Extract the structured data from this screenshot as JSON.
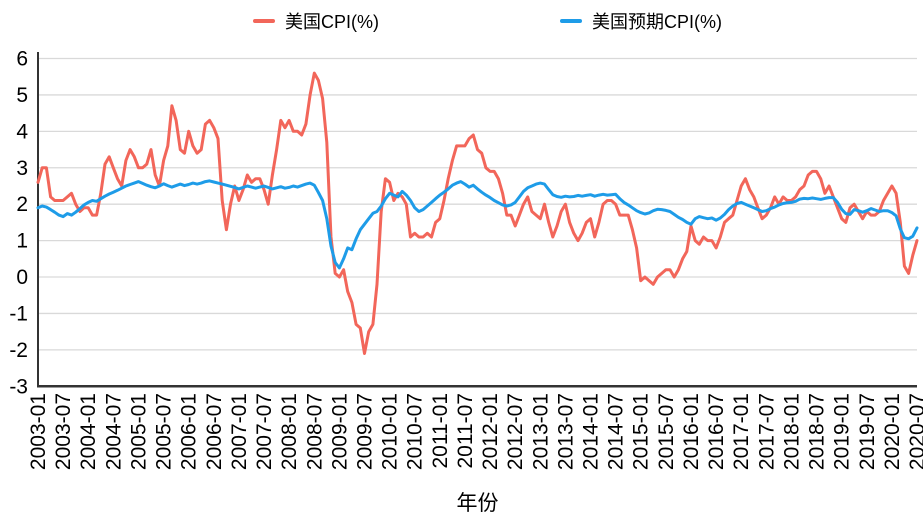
{
  "chart_data": {
    "type": "line",
    "title": "",
    "xlabel": "年份",
    "ylabel": "",
    "ylim": [
      -3,
      6
    ],
    "yticks": [
      6,
      5,
      4,
      3,
      2,
      1,
      0,
      -1,
      -2,
      -3
    ],
    "grid": "horizontal",
    "legend_position": "top",
    "x_frequency": "monthly",
    "x_tick_step": 6,
    "x_tick_labels": [
      "2003-01",
      "2003-07",
      "2004-01",
      "2004-07",
      "2005-01",
      "2005-07",
      "2006-01",
      "2006-07",
      "2007-01",
      "2007-07",
      "2008-01",
      "2008-07",
      "2009-01",
      "2009-07",
      "2010-01",
      "2010-07",
      "2011-01",
      "2011-07",
      "2012-01",
      "2012-07",
      "2013-01",
      "2013-07",
      "2014-01",
      "2014-07",
      "2015-01",
      "2015-07",
      "2016-01",
      "2016-07",
      "2017-01",
      "2017-07",
      "2018-01",
      "2018-07",
      "2019-01",
      "2019-07",
      "2020-01",
      "2020-07"
    ],
    "x": [
      "2003-01",
      "2003-02",
      "2003-03",
      "2003-04",
      "2003-05",
      "2003-06",
      "2003-07",
      "2003-08",
      "2003-09",
      "2003-10",
      "2003-11",
      "2003-12",
      "2004-01",
      "2004-02",
      "2004-03",
      "2004-04",
      "2004-05",
      "2004-06",
      "2004-07",
      "2004-08",
      "2004-09",
      "2004-10",
      "2004-11",
      "2004-12",
      "2005-01",
      "2005-02",
      "2005-03",
      "2005-04",
      "2005-05",
      "2005-06",
      "2005-07",
      "2005-08",
      "2005-09",
      "2005-10",
      "2005-11",
      "2005-12",
      "2006-01",
      "2006-02",
      "2006-03",
      "2006-04",
      "2006-05",
      "2006-06",
      "2006-07",
      "2006-08",
      "2006-09",
      "2006-10",
      "2006-11",
      "2006-12",
      "2007-01",
      "2007-02",
      "2007-03",
      "2007-04",
      "2007-05",
      "2007-06",
      "2007-07",
      "2007-08",
      "2007-09",
      "2007-10",
      "2007-11",
      "2007-12",
      "2008-01",
      "2008-02",
      "2008-03",
      "2008-04",
      "2008-05",
      "2008-06",
      "2008-07",
      "2008-08",
      "2008-09",
      "2008-10",
      "2008-11",
      "2008-12",
      "2009-01",
      "2009-02",
      "2009-03",
      "2009-04",
      "2009-05",
      "2009-06",
      "2009-07",
      "2009-08",
      "2009-09",
      "2009-10",
      "2009-11",
      "2009-12",
      "2010-01",
      "2010-02",
      "2010-03",
      "2010-04",
      "2010-05",
      "2010-06",
      "2010-07",
      "2010-08",
      "2010-09",
      "2010-10",
      "2010-11",
      "2010-12",
      "2011-01",
      "2011-02",
      "2011-03",
      "2011-04",
      "2011-05",
      "2011-06",
      "2011-07",
      "2011-08",
      "2011-09",
      "2011-10",
      "2011-11",
      "2011-12",
      "2012-01",
      "2012-02",
      "2012-03",
      "2012-04",
      "2012-05",
      "2012-06",
      "2012-07",
      "2012-08",
      "2012-09",
      "2012-10",
      "2012-11",
      "2012-12",
      "2013-01",
      "2013-02",
      "2013-03",
      "2013-04",
      "2013-05",
      "2013-06",
      "2013-07",
      "2013-08",
      "2013-09",
      "2013-10",
      "2013-11",
      "2013-12",
      "2014-01",
      "2014-02",
      "2014-03",
      "2014-04",
      "2014-05",
      "2014-06",
      "2014-07",
      "2014-08",
      "2014-09",
      "2014-10",
      "2014-11",
      "2014-12",
      "2015-01",
      "2015-02",
      "2015-03",
      "2015-04",
      "2015-05",
      "2015-06",
      "2015-07",
      "2015-08",
      "2015-09",
      "2015-10",
      "2015-11",
      "2015-12",
      "2016-01",
      "2016-02",
      "2016-03",
      "2016-04",
      "2016-05",
      "2016-06",
      "2016-07",
      "2016-08",
      "2016-09",
      "2016-10",
      "2016-11",
      "2016-12",
      "2017-01",
      "2017-02",
      "2017-03",
      "2017-04",
      "2017-05",
      "2017-06",
      "2017-07",
      "2017-08",
      "2017-09",
      "2017-10",
      "2017-11",
      "2017-12",
      "2018-01",
      "2018-02",
      "2018-03",
      "2018-04",
      "2018-05",
      "2018-06",
      "2018-07",
      "2018-08",
      "2018-09",
      "2018-10",
      "2018-11",
      "2018-12",
      "2019-01",
      "2019-02",
      "2019-03",
      "2019-04",
      "2019-05",
      "2019-06",
      "2019-07",
      "2019-08",
      "2019-09",
      "2019-10",
      "2019-11",
      "2019-12",
      "2020-01",
      "2020-02",
      "2020-03",
      "2020-04",
      "2020-05",
      "2020-06",
      "2020-07"
    ],
    "series": [
      {
        "name": "美国CPI(%)",
        "color": "#f2665a",
        "values": [
          2.6,
          3.0,
          3.0,
          2.2,
          2.1,
          2.1,
          2.1,
          2.2,
          2.3,
          2.0,
          1.8,
          1.9,
          1.9,
          1.7,
          1.7,
          2.3,
          3.1,
          3.3,
          3.0,
          2.7,
          2.5,
          3.2,
          3.5,
          3.3,
          3.0,
          3.0,
          3.1,
          3.5,
          2.8,
          2.5,
          3.2,
          3.6,
          4.7,
          4.3,
          3.5,
          3.4,
          4.0,
          3.6,
          3.4,
          3.5,
          4.2,
          4.3,
          4.1,
          3.8,
          2.1,
          1.3,
          2.0,
          2.5,
          2.1,
          2.4,
          2.8,
          2.6,
          2.7,
          2.7,
          2.4,
          2.0,
          2.8,
          3.5,
          4.3,
          4.1,
          4.3,
          4.0,
          4.0,
          3.9,
          4.2,
          5.0,
          5.6,
          5.4,
          4.9,
          3.7,
          1.1,
          0.1,
          0.0,
          0.2,
          -0.4,
          -0.7,
          -1.3,
          -1.4,
          -2.1,
          -1.5,
          -1.3,
          -0.2,
          1.8,
          2.7,
          2.6,
          2.1,
          2.3,
          2.2,
          2.0,
          1.1,
          1.2,
          1.1,
          1.1,
          1.2,
          1.1,
          1.5,
          1.6,
          2.1,
          2.7,
          3.2,
          3.6,
          3.6,
          3.6,
          3.8,
          3.9,
          3.5,
          3.4,
          3.0,
          2.9,
          2.9,
          2.7,
          2.3,
          1.7,
          1.7,
          1.4,
          1.7,
          2.0,
          2.2,
          1.8,
          1.7,
          1.6,
          2.0,
          1.5,
          1.1,
          1.4,
          1.8,
          2.0,
          1.5,
          1.2,
          1.0,
          1.2,
          1.5,
          1.6,
          1.1,
          1.5,
          2.0,
          2.1,
          2.1,
          2.0,
          1.7,
          1.7,
          1.7,
          1.3,
          0.8,
          -0.1,
          0.0,
          -0.1,
          -0.2,
          0.0,
          0.1,
          0.2,
          0.2,
          0.0,
          0.2,
          0.5,
          0.7,
          1.4,
          1.0,
          0.9,
          1.1,
          1.0,
          1.0,
          0.8,
          1.1,
          1.5,
          1.6,
          1.7,
          2.1,
          2.5,
          2.7,
          2.4,
          2.2,
          1.9,
          1.6,
          1.7,
          1.9,
          2.2,
          2.0,
          2.2,
          2.1,
          2.1,
          2.2,
          2.4,
          2.5,
          2.8,
          2.9,
          2.9,
          2.7,
          2.3,
          2.5,
          2.2,
          1.9,
          1.6,
          1.5,
          1.9,
          2.0,
          1.8,
          1.6,
          1.8,
          1.7,
          1.7,
          1.8,
          2.1,
          2.3,
          2.5,
          2.3,
          1.5,
          0.3,
          0.1,
          0.6,
          1.0
        ]
      },
      {
        "name": "美国预期CPI(%)",
        "color": "#1e9ce8",
        "values": [
          1.9,
          1.95,
          1.92,
          1.85,
          1.78,
          1.7,
          1.66,
          1.74,
          1.7,
          1.78,
          1.88,
          1.98,
          2.05,
          2.1,
          2.08,
          2.15,
          2.22,
          2.28,
          2.33,
          2.38,
          2.44,
          2.5,
          2.54,
          2.58,
          2.62,
          2.57,
          2.52,
          2.48,
          2.45,
          2.5,
          2.56,
          2.51,
          2.47,
          2.51,
          2.55,
          2.51,
          2.54,
          2.58,
          2.55,
          2.58,
          2.62,
          2.64,
          2.61,
          2.58,
          2.55,
          2.52,
          2.49,
          2.46,
          2.42,
          2.46,
          2.5,
          2.47,
          2.44,
          2.47,
          2.5,
          2.46,
          2.42,
          2.45,
          2.48,
          2.44,
          2.46,
          2.5,
          2.47,
          2.51,
          2.55,
          2.58,
          2.52,
          2.32,
          2.1,
          1.6,
          0.85,
          0.4,
          0.25,
          0.5,
          0.8,
          0.75,
          1.05,
          1.3,
          1.45,
          1.6,
          1.75,
          1.8,
          1.95,
          2.15,
          2.3,
          2.25,
          2.2,
          2.35,
          2.25,
          2.1,
          1.9,
          1.8,
          1.85,
          1.95,
          2.05,
          2.15,
          2.25,
          2.33,
          2.42,
          2.52,
          2.58,
          2.62,
          2.55,
          2.47,
          2.52,
          2.42,
          2.33,
          2.25,
          2.18,
          2.1,
          2.04,
          1.98,
          1.95,
          1.98,
          2.05,
          2.2,
          2.35,
          2.45,
          2.5,
          2.55,
          2.58,
          2.55,
          2.4,
          2.26,
          2.21,
          2.19,
          2.22,
          2.2,
          2.21,
          2.24,
          2.22,
          2.24,
          2.26,
          2.22,
          2.25,
          2.27,
          2.25,
          2.26,
          2.27,
          2.15,
          2.05,
          1.98,
          1.9,
          1.82,
          1.77,
          1.73,
          1.76,
          1.82,
          1.86,
          1.85,
          1.83,
          1.8,
          1.72,
          1.64,
          1.58,
          1.5,
          1.45,
          1.6,
          1.66,
          1.63,
          1.6,
          1.62,
          1.56,
          1.62,
          1.72,
          1.85,
          1.95,
          2.02,
          2.05,
          2.0,
          1.95,
          1.9,
          1.85,
          1.8,
          1.82,
          1.88,
          1.92,
          1.98,
          2.02,
          2.04,
          2.05,
          2.08,
          2.14,
          2.16,
          2.15,
          2.17,
          2.15,
          2.13,
          2.16,
          2.18,
          2.18,
          2.05,
          1.86,
          1.74,
          1.72,
          1.85,
          1.82,
          1.78,
          1.82,
          1.88,
          1.84,
          1.8,
          1.82,
          1.82,
          1.77,
          1.68,
          1.32,
          1.08,
          1.05,
          1.12,
          1.35
        ]
      }
    ],
    "colors": {
      "background": "#ffffff",
      "gridline": "#d9d9d9",
      "axis": "#333333",
      "text": "#000000"
    }
  }
}
